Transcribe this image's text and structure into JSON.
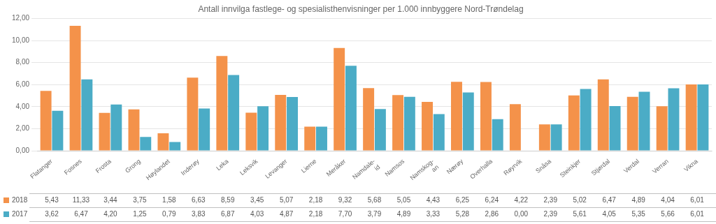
{
  "chart_data": {
    "type": "bar",
    "title": "Antall innvilga fastlege- og spesialisthenvisninger per 1.000 innbyggere Nord-Trøndelag",
    "categories": [
      "Flatanger",
      "Fosnes",
      "Frosta",
      "Grong",
      "Høylandet",
      "Inderøy",
      "Leka",
      "Leksvik",
      "Levanger",
      "Lierne",
      "Meråker",
      "Namdale-\nid",
      "Namsos",
      "Namskog-\nan",
      "Nærøy",
      "Overhalla",
      "Røyrvik",
      "Snåsa",
      "Steinkjer",
      "Stjørdal",
      "Verdal",
      "Verran",
      "Vikna"
    ],
    "series": [
      {
        "name": "2018",
        "color": "#f4924a",
        "values": [
          5.43,
          11.33,
          3.44,
          3.75,
          1.58,
          6.63,
          8.59,
          3.45,
          5.07,
          2.18,
          9.32,
          5.68,
          5.05,
          4.43,
          6.25,
          6.24,
          4.22,
          2.39,
          5.02,
          6.47,
          4.89,
          4.04,
          6.01
        ],
        "value_labels": [
          "5,43",
          "11,33",
          "3,44",
          "3,75",
          "1,58",
          "6,63",
          "8,59",
          "3,45",
          "5,07",
          "2,18",
          "9,32",
          "5,68",
          "5,05",
          "4,43",
          "6,25",
          "6,24",
          "4,22",
          "2,39",
          "5,02",
          "6,47",
          "4,89",
          "4,04",
          "6,01"
        ]
      },
      {
        "name": "2017",
        "color": "#4bacc6",
        "values": [
          3.62,
          6.47,
          4.2,
          1.25,
          0.79,
          3.83,
          6.87,
          4.03,
          4.87,
          2.18,
          7.7,
          3.79,
          4.89,
          3.33,
          5.28,
          2.86,
          0.0,
          2.39,
          5.61,
          4.05,
          5.35,
          5.66,
          6.01
        ],
        "value_labels": [
          "3,62",
          "6,47",
          "4,20",
          "1,25",
          "0,79",
          "3,83",
          "6,87",
          "4,03",
          "4,87",
          "2,18",
          "7,70",
          "3,79",
          "4,89",
          "3,33",
          "5,28",
          "2,86",
          "0,00",
          "2,39",
          "5,61",
          "4,05",
          "5,35",
          "5,66",
          "6,01"
        ]
      }
    ],
    "ylim": [
      0,
      12.0
    ],
    "yticks": [
      {
        "value": 0.0,
        "label": "0,00"
      },
      {
        "value": 2.0,
        "label": "2,00"
      },
      {
        "value": 4.0,
        "label": "4,00"
      },
      {
        "value": 6.0,
        "label": "6,00"
      },
      {
        "value": 8.0,
        "label": "8,00"
      },
      {
        "value": 10.0,
        "label": "10,00"
      },
      {
        "value": 12.0,
        "label": "12,00"
      }
    ],
    "grid": true,
    "legend": "bottom",
    "data_labels": true
  }
}
